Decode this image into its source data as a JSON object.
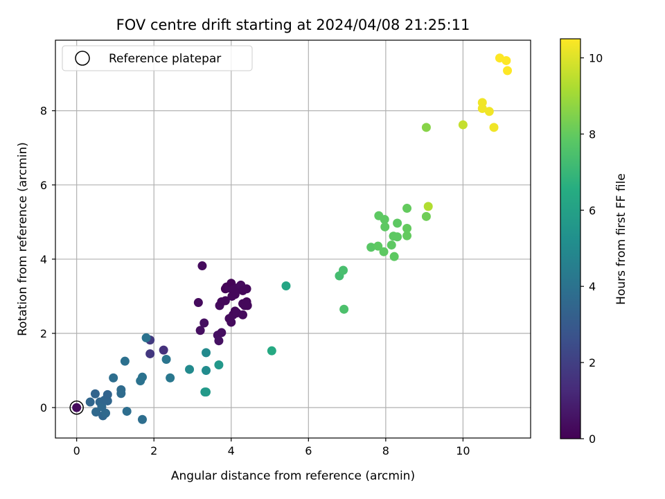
{
  "chart_data": {
    "type": "scatter",
    "title": "FOV centre drift starting at 2024/04/08 21:25:11",
    "xlabel": "Angular distance from reference (arcmin)",
    "ylabel": "Rotation from reference (arcmin)",
    "xlim": [
      -0.55,
      11.75
    ],
    "ylim": [
      -0.82,
      9.9
    ],
    "xticks": [
      0,
      2,
      4,
      6,
      8,
      10
    ],
    "yticks": [
      0,
      2,
      4,
      6,
      8
    ],
    "grid": true,
    "legend": {
      "placement": "top-left",
      "entries": [
        "Reference platepar"
      ]
    },
    "reference_point": {
      "x": 0,
      "y": 0
    },
    "colorbar": {
      "label": "Hours from first FF file",
      "range": [
        0,
        10.5
      ],
      "ticks": [
        0,
        2,
        4,
        6,
        8,
        10
      ],
      "colormap": "viridis"
    },
    "points": [
      {
        "x": 0.0,
        "y": 0.0,
        "h": 0.3
      },
      {
        "x": 3.25,
        "y": 3.82,
        "h": 0.3
      },
      {
        "x": 3.15,
        "y": 2.83,
        "h": 0.3
      },
      {
        "x": 3.2,
        "y": 2.08,
        "h": 0.4
      },
      {
        "x": 3.3,
        "y": 2.28,
        "h": 0.4
      },
      {
        "x": 3.65,
        "y": 1.95,
        "h": 0.5
      },
      {
        "x": 3.68,
        "y": 1.8,
        "h": 0.5
      },
      {
        "x": 3.75,
        "y": 2.02,
        "h": 0.4
      },
      {
        "x": 3.7,
        "y": 2.75,
        "h": 0.3
      },
      {
        "x": 3.75,
        "y": 2.85,
        "h": 0.2
      },
      {
        "x": 3.85,
        "y": 2.88,
        "h": 0.2
      },
      {
        "x": 3.85,
        "y": 3.2,
        "h": 0.1
      },
      {
        "x": 3.88,
        "y": 3.25,
        "h": 0.1
      },
      {
        "x": 3.95,
        "y": 3.22,
        "h": 0.2
      },
      {
        "x": 4.0,
        "y": 3.35,
        "h": 0.1
      },
      {
        "x": 4.05,
        "y": 3.18,
        "h": 0.2
      },
      {
        "x": 4.02,
        "y": 3.0,
        "h": 0.2
      },
      {
        "x": 4.1,
        "y": 3.05,
        "h": 0.2
      },
      {
        "x": 4.15,
        "y": 3.22,
        "h": 0.2
      },
      {
        "x": 4.25,
        "y": 3.3,
        "h": 0.3
      },
      {
        "x": 4.3,
        "y": 3.15,
        "h": 0.2
      },
      {
        "x": 4.4,
        "y": 3.2,
        "h": 0.2
      },
      {
        "x": 3.95,
        "y": 2.4,
        "h": 0.3
      },
      {
        "x": 4.0,
        "y": 2.3,
        "h": 0.3
      },
      {
        "x": 4.05,
        "y": 2.5,
        "h": 0.3
      },
      {
        "x": 4.1,
        "y": 2.6,
        "h": 0.2
      },
      {
        "x": 4.15,
        "y": 2.55,
        "h": 0.3
      },
      {
        "x": 4.3,
        "y": 2.5,
        "h": 0.3
      },
      {
        "x": 4.3,
        "y": 2.8,
        "h": 0.2
      },
      {
        "x": 4.35,
        "y": 2.75,
        "h": 0.2
      },
      {
        "x": 4.4,
        "y": 2.85,
        "h": 0.2
      },
      {
        "x": 4.42,
        "y": 2.75,
        "h": 0.2
      },
      {
        "x": 1.9,
        "y": 1.82,
        "h": 1.8
      },
      {
        "x": 1.9,
        "y": 1.45,
        "h": 1.7
      },
      {
        "x": 2.25,
        "y": 1.55,
        "h": 1.5
      },
      {
        "x": 0.35,
        "y": 0.15,
        "h": 3.5
      },
      {
        "x": 0.48,
        "y": 0.37,
        "h": 3.4
      },
      {
        "x": 0.5,
        "y": -0.12,
        "h": 3.6
      },
      {
        "x": 0.6,
        "y": 0.15,
        "h": 3.5
      },
      {
        "x": 0.65,
        "y": 0.02,
        "h": 3.6
      },
      {
        "x": 0.68,
        "y": -0.22,
        "h": 3.5
      },
      {
        "x": 0.72,
        "y": 0.2,
        "h": 3.5
      },
      {
        "x": 0.75,
        "y": -0.15,
        "h": 3.6
      },
      {
        "x": 0.8,
        "y": 0.18,
        "h": 3.5
      },
      {
        "x": 0.8,
        "y": 0.35,
        "h": 3.4
      },
      {
        "x": 0.95,
        "y": 0.8,
        "h": 3.8
      },
      {
        "x": 1.15,
        "y": 0.48,
        "h": 3.7
      },
      {
        "x": 1.15,
        "y": 0.38,
        "h": 3.7
      },
      {
        "x": 1.25,
        "y": 1.25,
        "h": 3.9
      },
      {
        "x": 1.3,
        "y": -0.1,
        "h": 3.8
      },
      {
        "x": 1.65,
        "y": 0.72,
        "h": 4.0
      },
      {
        "x": 1.7,
        "y": 0.82,
        "h": 4.0
      },
      {
        "x": 1.7,
        "y": -0.32,
        "h": 3.8
      },
      {
        "x": 1.8,
        "y": 1.88,
        "h": 4.0
      },
      {
        "x": 2.32,
        "y": 1.3,
        "h": 4.1
      },
      {
        "x": 2.42,
        "y": 0.8,
        "h": 4.2
      },
      {
        "x": 2.92,
        "y": 1.03,
        "h": 5.0
      },
      {
        "x": 3.35,
        "y": 1.48,
        "h": 5.0
      },
      {
        "x": 3.35,
        "y": 1.0,
        "h": 5.1
      },
      {
        "x": 3.32,
        "y": 0.42,
        "h": 5.5
      },
      {
        "x": 3.35,
        "y": 0.42,
        "h": 5.7
      },
      {
        "x": 3.68,
        "y": 1.15,
        "h": 5.6
      },
      {
        "x": 5.05,
        "y": 1.53,
        "h": 6.4
      },
      {
        "x": 5.42,
        "y": 3.28,
        "h": 6.2
      },
      {
        "x": 6.8,
        "y": 3.55,
        "h": 7.3
      },
      {
        "x": 6.9,
        "y": 3.7,
        "h": 7.4
      },
      {
        "x": 6.92,
        "y": 2.65,
        "h": 7.5
      },
      {
        "x": 7.62,
        "y": 4.32,
        "h": 7.8
      },
      {
        "x": 7.8,
        "y": 4.35,
        "h": 7.9
      },
      {
        "x": 7.82,
        "y": 5.17,
        "h": 7.9
      },
      {
        "x": 7.95,
        "y": 4.2,
        "h": 7.9
      },
      {
        "x": 7.97,
        "y": 5.07,
        "h": 7.9
      },
      {
        "x": 7.98,
        "y": 4.87,
        "h": 7.9
      },
      {
        "x": 8.15,
        "y": 4.38,
        "h": 7.9
      },
      {
        "x": 8.2,
        "y": 4.62,
        "h": 7.9
      },
      {
        "x": 8.22,
        "y": 4.07,
        "h": 7.9
      },
      {
        "x": 8.3,
        "y": 4.97,
        "h": 7.9
      },
      {
        "x": 8.3,
        "y": 4.6,
        "h": 7.9
      },
      {
        "x": 8.55,
        "y": 5.37,
        "h": 8.0
      },
      {
        "x": 8.55,
        "y": 4.83,
        "h": 8.0
      },
      {
        "x": 8.55,
        "y": 4.63,
        "h": 8.0
      },
      {
        "x": 9.05,
        "y": 7.55,
        "h": 8.6
      },
      {
        "x": 9.05,
        "y": 5.15,
        "h": 8.2
      },
      {
        "x": 9.1,
        "y": 5.42,
        "h": 9.3
      },
      {
        "x": 10.0,
        "y": 7.62,
        "h": 9.6
      },
      {
        "x": 10.5,
        "y": 8.22,
        "h": 10.3
      },
      {
        "x": 10.5,
        "y": 8.06,
        "h": 10.3
      },
      {
        "x": 10.68,
        "y": 7.98,
        "h": 10.3
      },
      {
        "x": 10.8,
        "y": 7.55,
        "h": 10.3
      },
      {
        "x": 10.95,
        "y": 9.42,
        "h": 10.5
      },
      {
        "x": 11.12,
        "y": 9.35,
        "h": 10.5
      },
      {
        "x": 11.15,
        "y": 9.08,
        "h": 10.5
      }
    ]
  }
}
